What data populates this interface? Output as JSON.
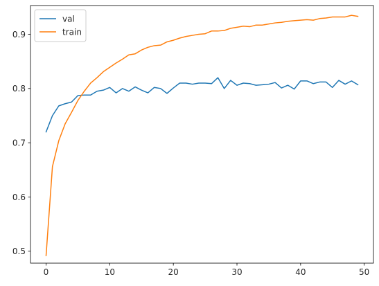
{
  "chart_data": {
    "type": "line",
    "title": "",
    "xlabel": "",
    "ylabel": "",
    "xlim": [
      -2.45,
      51.45
    ],
    "ylim": [
      0.478,
      0.953
    ],
    "xticks": [
      0,
      10,
      20,
      30,
      40,
      50
    ],
    "yticks": [
      0.5,
      0.6,
      0.7,
      0.8,
      0.9
    ],
    "legend": "top-left",
    "grid": false,
    "series": [
      {
        "name": "val",
        "color": "#1f77b4",
        "x": [
          0,
          1,
          2,
          3,
          4,
          5,
          6,
          7,
          8,
          9,
          10,
          11,
          12,
          13,
          14,
          15,
          16,
          17,
          18,
          19,
          20,
          21,
          22,
          23,
          24,
          25,
          26,
          27,
          28,
          29,
          30,
          31,
          32,
          33,
          34,
          35,
          36,
          37,
          38,
          39,
          40,
          41,
          42,
          43,
          44,
          45,
          46,
          47,
          48,
          49
        ],
        "values": [
          0.72,
          0.75,
          0.768,
          0.772,
          0.775,
          0.787,
          0.788,
          0.788,
          0.795,
          0.797,
          0.802,
          0.792,
          0.8,
          0.795,
          0.803,
          0.797,
          0.792,
          0.802,
          0.8,
          0.791,
          0.801,
          0.81,
          0.81,
          0.808,
          0.81,
          0.81,
          0.809,
          0.82,
          0.8,
          0.815,
          0.806,
          0.81,
          0.809,
          0.806,
          0.807,
          0.808,
          0.811,
          0.801,
          0.806,
          0.799,
          0.814,
          0.814,
          0.809,
          0.812,
          0.812,
          0.802,
          0.815,
          0.808,
          0.814,
          0.807
        ]
      },
      {
        "name": "train",
        "color": "#ff7f0e",
        "x": [
          0,
          1,
          2,
          3,
          4,
          5,
          6,
          7,
          8,
          9,
          10,
          11,
          12,
          13,
          14,
          15,
          16,
          17,
          18,
          19,
          20,
          21,
          22,
          23,
          24,
          25,
          26,
          27,
          28,
          29,
          30,
          31,
          32,
          33,
          34,
          35,
          36,
          37,
          38,
          39,
          40,
          41,
          42,
          43,
          44,
          45,
          46,
          47,
          48,
          49
        ],
        "values": [
          0.492,
          0.656,
          0.704,
          0.735,
          0.756,
          0.778,
          0.795,
          0.81,
          0.82,
          0.831,
          0.839,
          0.847,
          0.854,
          0.862,
          0.864,
          0.871,
          0.876,
          0.879,
          0.88,
          0.886,
          0.889,
          0.893,
          0.896,
          0.898,
          0.9,
          0.901,
          0.906,
          0.906,
          0.907,
          0.911,
          0.913,
          0.915,
          0.914,
          0.917,
          0.917,
          0.919,
          0.921,
          0.922,
          0.924,
          0.925,
          0.926,
          0.927,
          0.926,
          0.929,
          0.93,
          0.932,
          0.932,
          0.932,
          0.935,
          0.933
        ]
      }
    ]
  }
}
